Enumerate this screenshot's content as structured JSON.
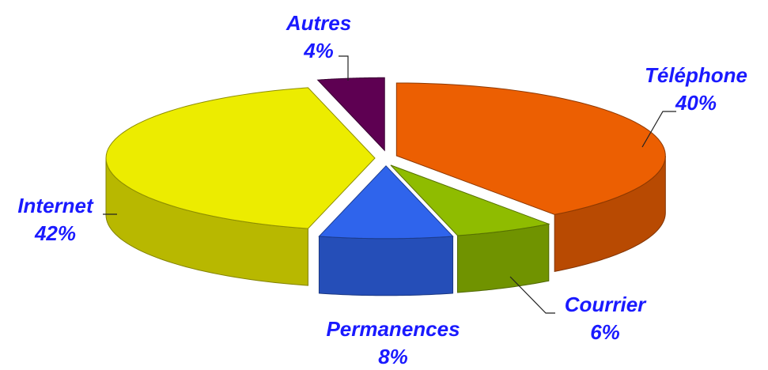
{
  "chart_data": {
    "type": "pie3d",
    "categories": [
      "Téléphone",
      "Courrier",
      "Permanences",
      "Internet",
      "Autres"
    ],
    "values": [
      40,
      6,
      8,
      42,
      4
    ],
    "value_labels": [
      "40%",
      "6%",
      "8%",
      "42%",
      "4%"
    ],
    "colors": [
      "#ec5f02",
      "#8fbc00",
      "#2f64ec",
      "#ecec00",
      "#5e0052"
    ]
  }
}
